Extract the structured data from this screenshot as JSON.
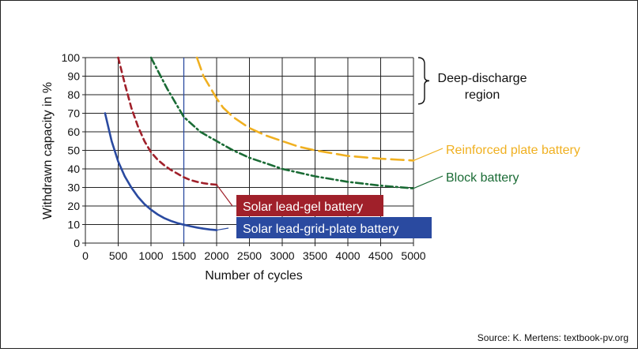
{
  "chart_data": {
    "type": "line",
    "xlabel": "Number of cycles",
    "ylabel": "Withdrawn capacity in %",
    "xlim": [
      0,
      5000
    ],
    "ylim": [
      0,
      100
    ],
    "x_ticks": [
      "0",
      "500",
      "1000",
      "1500",
      "2000",
      "2500",
      "3000",
      "3500",
      "4000",
      "4500",
      "5000"
    ],
    "y_ticks": [
      "0",
      "10",
      "20",
      "30",
      "40",
      "50",
      "60",
      "70",
      "80",
      "90",
      "100"
    ],
    "grid": true,
    "vertical_marker_x": 1500,
    "bracket_label_line1": "Deep-discharge",
    "bracket_label_line2": "region",
    "bracket_range": [
      75,
      100
    ],
    "series": [
      {
        "name": "Solar lead-grid-plate battery",
        "color": "#2a4aa0",
        "style": "solid",
        "label_style": "box",
        "x": [
          300,
          400,
          500,
          600,
          700,
          800,
          900,
          1000,
          1100,
          1200,
          1300,
          1400,
          1500,
          1600,
          1700,
          1800,
          1900,
          2000
        ],
        "y": [
          70,
          55,
          44,
          36,
          30,
          25,
          21,
          18,
          15.5,
          13.5,
          12,
          10.8,
          9.9,
          9.1,
          8.4,
          7.8,
          7.3,
          7
        ]
      },
      {
        "name": "Solar lead-gel battery",
        "color": "#a0202a",
        "style": "dashed",
        "label_style": "box",
        "x": [
          500,
          600,
          700,
          800,
          900,
          1000,
          1100,
          1200,
          1300,
          1400,
          1500,
          1600,
          1700,
          1800,
          1900,
          2000
        ],
        "y": [
          100,
          86,
          73,
          63,
          55,
          49,
          45,
          42,
          39.5,
          37.5,
          35.5,
          34,
          33,
          32.3,
          31.8,
          31.5
        ]
      },
      {
        "name": "Block battery",
        "color": "#1a6b35",
        "style": "dashdot",
        "label_style": "text",
        "x": [
          1000,
          1250,
          1500,
          1750,
          2000,
          2250,
          2500,
          2750,
          3000,
          3500,
          4000,
          4500,
          5000
        ],
        "y": [
          100,
          83,
          68,
          60,
          55,
          50,
          46,
          43,
          40,
          36,
          33,
          31,
          29.5
        ]
      },
      {
        "name": "Reinforced plate battery",
        "color": "#f0b020",
        "style": "longdash",
        "label_style": "text",
        "x": [
          1700,
          1800,
          1900,
          2000,
          2100,
          2250,
          2500,
          2750,
          3000,
          3250,
          3500,
          3750,
          4000,
          4500,
          5000
        ],
        "y": [
          100,
          90,
          84,
          78,
          73,
          68,
          62,
          58,
          55,
          52,
          50,
          48.5,
          47,
          45.5,
          44.5
        ]
      }
    ]
  },
  "source": "Source: K. Mertens: textbook-pv.org"
}
